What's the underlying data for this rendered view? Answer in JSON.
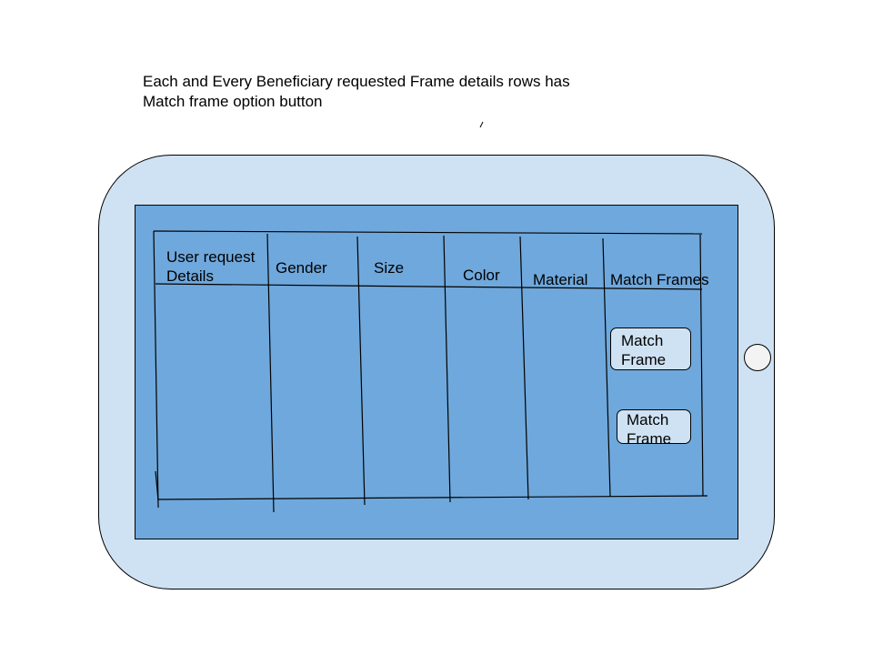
{
  "annotation": {
    "line1": "Each and Every Beneficiary requested Frame details rows has",
    "line2": "Match frame option button"
  },
  "table": {
    "headers": [
      {
        "line1": "User request",
        "line2": "Details"
      },
      {
        "line1": "Gender"
      },
      {
        "line1": "Size"
      },
      {
        "line1": "Color"
      },
      {
        "line1": "Material"
      },
      {
        "line1": "Match Frames"
      }
    ],
    "match_buttons": [
      {
        "line1": "Match",
        "line2": "Frame"
      },
      {
        "line1": "Match",
        "line2": "Frame"
      }
    ]
  },
  "colors": {
    "tablet_body": "#cfe2f3",
    "screen": "#6fa8dc",
    "button_fill": "#cfe2f3",
    "home_button": "#f3f3f3"
  }
}
